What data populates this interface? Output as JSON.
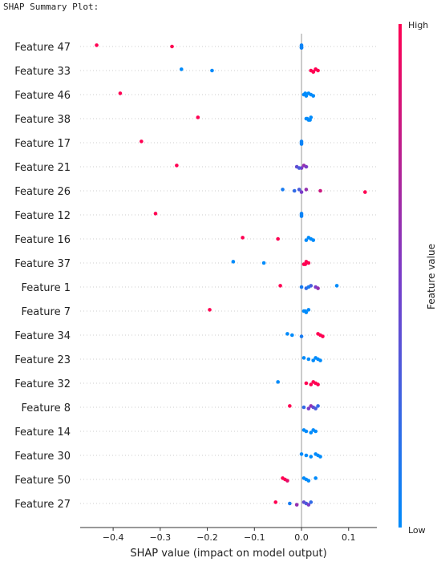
{
  "header": {
    "text": "SHAP Summary Plot:"
  },
  "chart_data": {
    "type": "scatter",
    "title": "",
    "xlabel": "SHAP value (impact on model output)",
    "ylabel": "",
    "xlim": [
      -0.47,
      0.16
    ],
    "xticks": [
      {
        "value": -0.4,
        "label": "−0.4"
      },
      {
        "value": -0.3,
        "label": "−0.3"
      },
      {
        "value": -0.2,
        "label": "−0.2"
      },
      {
        "value": -0.1,
        "label": "−0.1"
      },
      {
        "value": 0.0,
        "label": "0.0"
      },
      {
        "value": 0.1,
        "label": "0.1"
      }
    ],
    "colorbar": {
      "label": "Feature value",
      "high": "High",
      "low": "Low",
      "high_color": "#ff0052",
      "low_color": "#008bfb"
    },
    "colors": {
      "grid": "#cccccc",
      "zero_line": "#999999",
      "axis": "#333333"
    },
    "features": [
      {
        "name": "Feature 47",
        "points": [
          [
            -0.435,
            1
          ],
          [
            -0.275,
            1
          ],
          [
            0.0,
            0.05
          ],
          [
            0.0,
            0.05
          ],
          [
            0.0,
            0.05
          ],
          [
            0.0,
            0.05
          ]
        ]
      },
      {
        "name": "Feature 33",
        "points": [
          [
            -0.255,
            0
          ],
          [
            -0.19,
            0
          ],
          [
            0.025,
            1
          ],
          [
            0.03,
            1
          ],
          [
            0.035,
            1
          ],
          [
            0.025,
            1
          ],
          [
            0.03,
            1
          ],
          [
            0.02,
            1
          ]
        ]
      },
      {
        "name": "Feature 46",
        "points": [
          [
            -0.385,
            1
          ],
          [
            0.005,
            0
          ],
          [
            0.01,
            0
          ],
          [
            0.015,
            0
          ],
          [
            0.02,
            0
          ],
          [
            0.025,
            0
          ],
          [
            0.008,
            0
          ]
        ]
      },
      {
        "name": "Feature 38",
        "points": [
          [
            -0.22,
            1
          ],
          [
            0.01,
            0
          ],
          [
            0.015,
            0
          ],
          [
            0.02,
            0
          ],
          [
            0.012,
            0
          ],
          [
            0.018,
            0
          ]
        ]
      },
      {
        "name": "Feature 17",
        "points": [
          [
            -0.34,
            1
          ],
          [
            0.0,
            0.05
          ],
          [
            0.0,
            0.05
          ],
          [
            0.0,
            0.05
          ]
        ]
      },
      {
        "name": "Feature 21",
        "points": [
          [
            -0.265,
            1
          ],
          [
            -0.01,
            0.4
          ],
          [
            0.0,
            0.5
          ],
          [
            0.005,
            0.6
          ],
          [
            0.01,
            0.5
          ],
          [
            -0.005,
            0.3
          ]
        ]
      },
      {
        "name": "Feature 26",
        "points": [
          [
            -0.04,
            0.1
          ],
          [
            -0.015,
            0.2
          ],
          [
            0.0,
            0.5
          ],
          [
            0.01,
            0.6
          ],
          [
            0.04,
            0.8
          ],
          [
            0.135,
            1
          ],
          [
            -0.005,
            0.3
          ]
        ]
      },
      {
        "name": "Feature 12",
        "points": [
          [
            -0.31,
            1
          ],
          [
            0.0,
            0.05
          ],
          [
            0.0,
            0.05
          ],
          [
            0.0,
            0.05
          ]
        ]
      },
      {
        "name": "Feature 16",
        "points": [
          [
            -0.125,
            1
          ],
          [
            -0.05,
            1
          ],
          [
            0.01,
            0
          ],
          [
            0.015,
            0
          ],
          [
            0.02,
            0
          ],
          [
            0.025,
            0
          ]
        ]
      },
      {
        "name": "Feature 37",
        "points": [
          [
            -0.145,
            0
          ],
          [
            -0.08,
            0
          ],
          [
            0.005,
            1
          ],
          [
            0.01,
            1
          ],
          [
            0.015,
            1
          ],
          [
            0.008,
            1
          ]
        ]
      },
      {
        "name": "Feature 1",
        "points": [
          [
            -0.045,
            1
          ],
          [
            0.0,
            0.1
          ],
          [
            0.01,
            0.2
          ],
          [
            0.02,
            0.3
          ],
          [
            0.03,
            0.5
          ],
          [
            0.035,
            0.6
          ],
          [
            0.075,
            0
          ],
          [
            0.015,
            0.1
          ]
        ]
      },
      {
        "name": "Feature 7",
        "points": [
          [
            -0.195,
            1
          ],
          [
            0.005,
            0
          ],
          [
            0.01,
            0
          ],
          [
            0.015,
            0
          ],
          [
            0.008,
            0
          ]
        ]
      },
      {
        "name": "Feature 34",
        "points": [
          [
            -0.03,
            0
          ],
          [
            -0.02,
            0
          ],
          [
            0.0,
            0.1
          ],
          [
            0.035,
            1
          ],
          [
            0.04,
            1
          ],
          [
            0.045,
            1
          ]
        ]
      },
      {
        "name": "Feature 23",
        "points": [
          [
            0.005,
            0
          ],
          [
            0.015,
            0
          ],
          [
            0.025,
            0
          ],
          [
            0.03,
            0
          ],
          [
            0.035,
            0
          ],
          [
            0.04,
            0
          ]
        ]
      },
      {
        "name": "Feature 32",
        "points": [
          [
            -0.05,
            0
          ],
          [
            0.01,
            1
          ],
          [
            0.02,
            1
          ],
          [
            0.025,
            1
          ],
          [
            0.03,
            1
          ],
          [
            0.035,
            1
          ]
        ]
      },
      {
        "name": "Feature 8",
        "points": [
          [
            -0.025,
            1
          ],
          [
            0.005,
            0.2
          ],
          [
            0.015,
            0.5
          ],
          [
            0.02,
            0.6
          ],
          [
            0.025,
            0.4
          ],
          [
            0.03,
            0.3
          ],
          [
            0.035,
            0.2
          ]
        ]
      },
      {
        "name": "Feature 14",
        "points": [
          [
            0.005,
            0
          ],
          [
            0.01,
            0
          ],
          [
            0.02,
            0
          ],
          [
            0.025,
            0
          ],
          [
            0.03,
            0
          ]
        ]
      },
      {
        "name": "Feature 30",
        "points": [
          [
            0.0,
            0
          ],
          [
            0.01,
            0
          ],
          [
            0.02,
            0
          ],
          [
            0.03,
            0
          ],
          [
            0.035,
            0
          ],
          [
            0.04,
            0
          ]
        ]
      },
      {
        "name": "Feature 50",
        "points": [
          [
            -0.04,
            1
          ],
          [
            -0.035,
            1
          ],
          [
            -0.03,
            0.9
          ],
          [
            0.005,
            0
          ],
          [
            0.01,
            0
          ],
          [
            0.015,
            0
          ],
          [
            0.03,
            0
          ]
        ]
      },
      {
        "name": "Feature 27",
        "points": [
          [
            -0.055,
            1
          ],
          [
            -0.025,
            0.1
          ],
          [
            -0.01,
            0.6
          ],
          [
            0.005,
            0.4
          ],
          [
            0.01,
            0.3
          ],
          [
            0.015,
            0.5
          ],
          [
            0.02,
            0.2
          ]
        ]
      }
    ]
  }
}
